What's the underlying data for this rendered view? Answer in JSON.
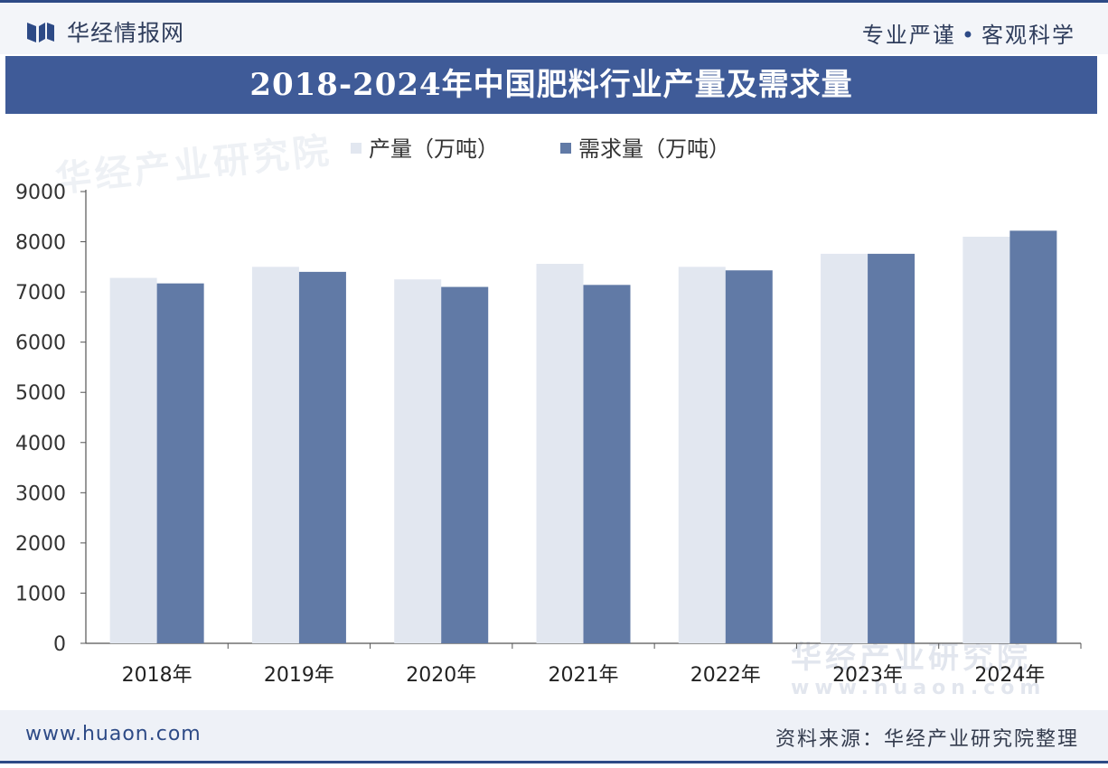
{
  "header": {
    "brand": "华经情报网",
    "slogan_left": "专业严谨",
    "slogan_dot": "•",
    "slogan_right": "客观科学"
  },
  "watermark": {
    "text": "华经产业研究院",
    "url": "www.huaon.com"
  },
  "footer": {
    "site": "www.huaon.com",
    "source": "资料来源：华经产业研究院整理"
  },
  "colors": {
    "production": "#e2e7f0",
    "demand": "#617aa6",
    "title_bg": "#3f5b98",
    "axis": "#555555"
  },
  "chart_data": {
    "type": "bar",
    "title": "2018-2024年中国肥料行业产量及需求量",
    "categories": [
      "2018年",
      "2019年",
      "2020年",
      "2021年",
      "2022年",
      "2023年",
      "2024年"
    ],
    "series": [
      {
        "name": "产量（万吨）",
        "values": [
          7280,
          7500,
          7250,
          7560,
          7500,
          7760,
          8100
        ]
      },
      {
        "name": "需求量（万吨）",
        "values": [
          7170,
          7400,
          7100,
          7140,
          7430,
          7760,
          8220
        ]
      }
    ],
    "ylim": [
      0,
      9000
    ],
    "yticks": [
      0,
      1000,
      2000,
      3000,
      4000,
      5000,
      6000,
      7000,
      8000,
      9000
    ],
    "xlabel": "",
    "ylabel": "",
    "legend": "top-left",
    "grid": false
  }
}
